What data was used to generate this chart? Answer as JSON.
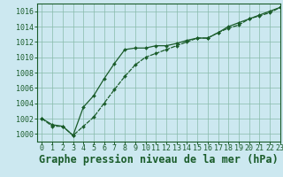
{
  "title": "Graphe pression niveau de la mer (hPa)",
  "bg_color": "#cce8f0",
  "grid_color": "#88bbaa",
  "line_color": "#1a5c2a",
  "xlim": [
    -0.5,
    23
  ],
  "ylim": [
    999.0,
    1017.0
  ],
  "yticks": [
    1000,
    1002,
    1004,
    1006,
    1008,
    1010,
    1012,
    1014,
    1016
  ],
  "xticks": [
    0,
    1,
    2,
    3,
    4,
    5,
    6,
    7,
    8,
    9,
    10,
    11,
    12,
    13,
    14,
    15,
    16,
    17,
    18,
    19,
    20,
    21,
    22,
    23
  ],
  "title_fontsize": 8.5,
  "tick_fontsize": 6.0,
  "series1_x": [
    0,
    1,
    2,
    3,
    4,
    5,
    6,
    7,
    8,
    9,
    10,
    11,
    12,
    13,
    14,
    15,
    16,
    17,
    18,
    19,
    20,
    21,
    22,
    23
  ],
  "series1_y": [
    1002.0,
    1001.2,
    1001.0,
    999.8,
    1003.5,
    1005.0,
    1007.2,
    1009.2,
    1011.0,
    1011.2,
    1011.2,
    1011.5,
    1011.5,
    1011.8,
    1012.2,
    1012.5,
    1012.5,
    1013.2,
    1014.0,
    1014.5,
    1015.0,
    1015.5,
    1016.0,
    1016.5
  ],
  "series2_x": [
    0,
    1,
    2,
    3,
    4,
    5,
    6,
    7,
    8,
    9,
    10,
    11,
    12,
    13,
    14,
    15,
    16,
    17,
    18,
    19,
    20,
    21,
    22,
    23
  ],
  "series2_y": [
    1002.0,
    1001.0,
    1001.0,
    999.8,
    1001.0,
    1002.2,
    1004.0,
    1005.8,
    1007.5,
    1009.0,
    1010.0,
    1010.5,
    1011.0,
    1011.5,
    1012.0,
    1012.5,
    1012.5,
    1013.2,
    1013.8,
    1014.2,
    1015.0,
    1015.4,
    1015.8,
    1016.5
  ]
}
